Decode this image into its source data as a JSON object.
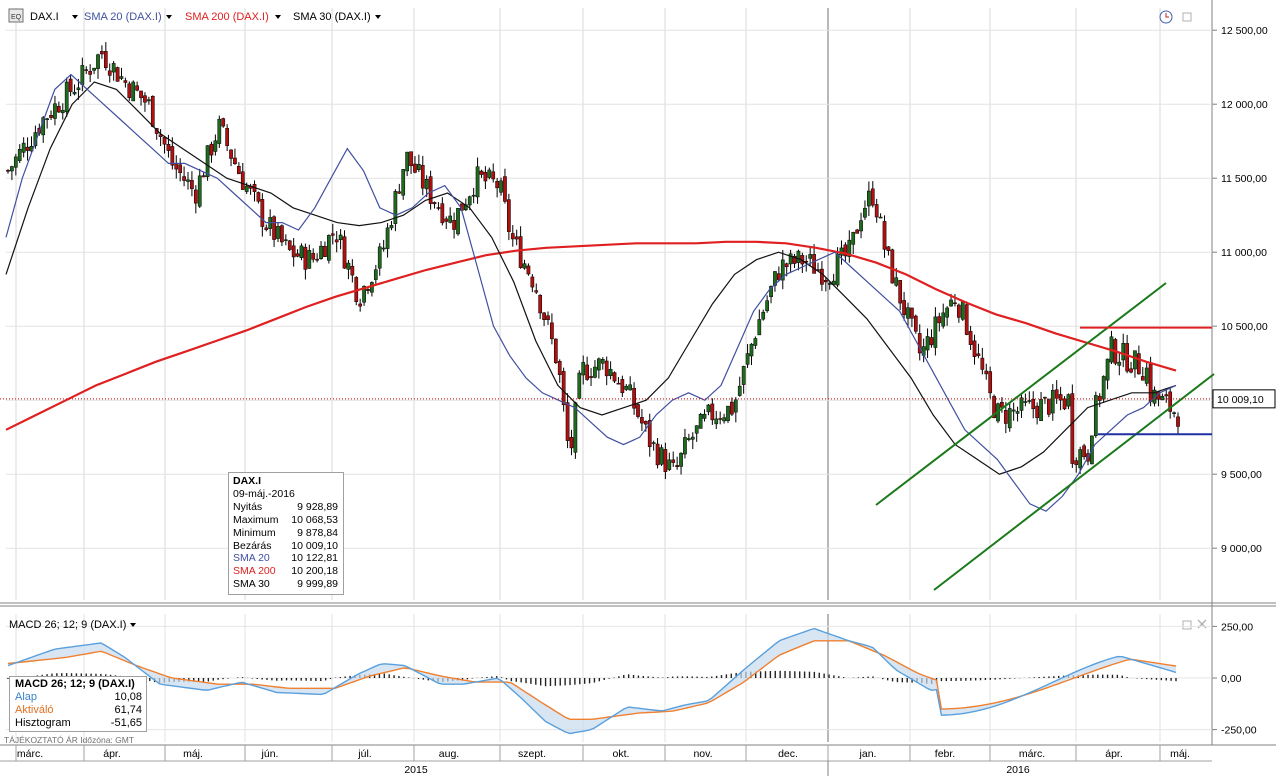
{
  "legend": {
    "instrument": "DAX.I",
    "sma20": "SMA 20 (DAX.I)",
    "sma200": "SMA 200 (DAX.I)",
    "sma30": "SMA 30 (DAX.I)",
    "dropdown_icon": "triangle-down"
  },
  "colors": {
    "up": "#1e6b1e",
    "down": "#b01010",
    "sma20": "#4050a0",
    "sma200": "#e02020",
    "sma30": "#111111",
    "channel": "#1a7a1a",
    "support": "#2030a0",
    "resistance": "#e02020",
    "macd_line": "#5aa0dc",
    "signal_line": "#f08030",
    "last_price": "#c00000"
  },
  "price_panel": {
    "y_axis_labels": [
      "12 500,00",
      "12 000,00",
      "11 500,00",
      "11 000,00",
      "10 500,00",
      "10 000,00",
      "9 500,00",
      "9 000,00"
    ],
    "last_price_label": "10 009,10"
  },
  "tooltip": {
    "title": "DAX.I",
    "date": "09-máj.-2016",
    "rows": [
      {
        "label": "Nyitás",
        "value": "9 928,89",
        "color": "#000"
      },
      {
        "label": "Maximum",
        "value": "10 068,53",
        "color": "#000"
      },
      {
        "label": "Minimum",
        "value": "9 878,84",
        "color": "#000"
      },
      {
        "label": "Bezárás",
        "value": "10 009,10",
        "color": "#000"
      },
      {
        "label": "SMA 20",
        "value": "10 122,81",
        "color": "#4050a0"
      },
      {
        "label": "SMA 200",
        "value": "10 200,18",
        "color": "#e02020"
      },
      {
        "label": "SMA 30",
        "value": "9 999,89",
        "color": "#000"
      }
    ]
  },
  "macd_panel": {
    "legend": "MACD 26; 12; 9 (DAX.I)",
    "y_axis_labels": [
      "250,00",
      "0,00",
      "-250,00"
    ],
    "box_title": "MACD 26; 12; 9 (DAX.I)",
    "box_rows": [
      {
        "label": "Alap",
        "value": "10,08",
        "color": "#3a80c8"
      },
      {
        "label": "Aktiváló",
        "value": "61,74",
        "color": "#e07020"
      },
      {
        "label": "Hisztogram",
        "value": "-51,65",
        "color": "#000"
      }
    ]
  },
  "footer": {
    "info": "TÁJÉKOZTATÓ ÁR   Időzóna: GMT"
  },
  "x_axis": {
    "months": [
      "márc.",
      "ápr.",
      "máj.",
      "jún.",
      "júl.",
      "aug.",
      "szept.",
      "okt.",
      "nov.",
      "dec.",
      "jan.",
      "febr.",
      "márc.",
      "ápr.",
      "máj."
    ],
    "years": [
      "2015",
      "2016"
    ]
  },
  "chart_data": {
    "type": "candlestick",
    "instrument": "DAX.I",
    "price_ylim": [
      8650,
      12650
    ],
    "sma20_values": [
      11100,
      11500,
      11800,
      12100,
      12200,
      12100,
      12000,
      11900,
      11800,
      11700,
      11600,
      11600,
      11550,
      11500,
      11400,
      11300,
      11200,
      11200,
      11150,
      11300,
      11500,
      11700,
      11550,
      11300,
      11250,
      11300,
      11400,
      11450,
      11300,
      10900,
      10500,
      10300,
      10150,
      10050,
      10000,
      9950,
      9850,
      9750,
      9700,
      9750,
      9900,
      10000,
      10050,
      10000,
      10100,
      10350,
      10600,
      10750,
      10850,
      10900,
      10950,
      11000,
      10900,
      10800,
      10700,
      10600,
      10400,
      10200,
      10000,
      9800,
      9700,
      9600,
      9450,
      9300,
      9250,
      9350,
      9500,
      9700,
      9800,
      9900,
      9950,
      10050,
      10100
    ],
    "sma200_values": [
      9800,
      9900,
      10000,
      10100,
      10180,
      10260,
      10330,
      10400,
      10470,
      10550,
      10630,
      10700,
      10760,
      10820,
      10880,
      10930,
      10980,
      11010,
      11030,
      11040,
      11050,
      11060,
      11060,
      11060,
      11070,
      11070,
      11060,
      11030,
      10990,
      10930,
      10850,
      10750,
      10660,
      10580,
      10520,
      10450,
      10390,
      10330,
      10260,
      10200
    ],
    "sma30_values": [
      10850,
      11300,
      11700,
      12000,
      12150,
      12100,
      11950,
      11800,
      11700,
      11600,
      11500,
      11450,
      11400,
      11300,
      11250,
      11200,
      11180,
      11200,
      11250,
      11350,
      11400,
      11300,
      11100,
      10800,
      10400,
      10100,
      9950,
      9900,
      9950,
      10000,
      10150,
      10400,
      10650,
      10850,
      10950,
      11000,
      10950,
      10850,
      10700,
      10550,
      10350,
      10150,
      9900,
      9700,
      9600,
      9500,
      9550,
      9650,
      9800,
      9950,
      10000,
      10050,
      10050,
      10100
    ],
    "macd_ylim": [
      -310,
      310
    ],
    "channel_lines": [
      {
        "from": [
          "2016-01-02",
          9340
        ],
        "to": [
          "2016-04-20",
          10720
        ]
      },
      {
        "from": [
          "2016-01-25",
          8640
        ],
        "to": [
          "2016-05-15",
          10070
        ]
      }
    ],
    "horizontal_lines": [
      {
        "level": 10490,
        "color": "red"
      },
      {
        "level": 9770,
        "color": "blue"
      }
    ],
    "last_close": 10009.1
  }
}
